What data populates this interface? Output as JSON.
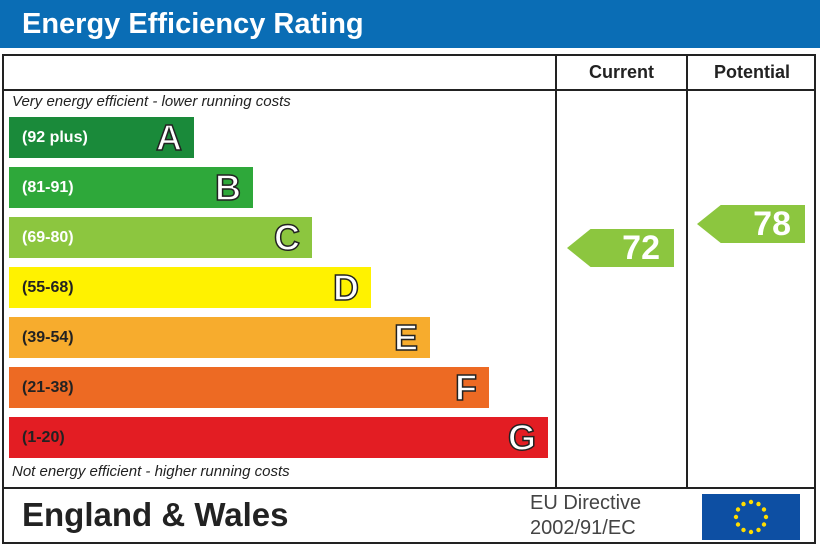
{
  "title": "Energy Efficiency Rating",
  "columns": {
    "current": "Current",
    "potential": "Potential"
  },
  "notes": {
    "top": "Very energy efficient - lower running costs",
    "bottom": "Not energy efficient - higher running costs"
  },
  "footer": {
    "region": "England & Wales",
    "directive_line1": "EU Directive",
    "directive_line2": "2002/91/EC",
    "flag": "eu-flag-icon"
  },
  "chart_data": {
    "type": "bar",
    "bands": [
      {
        "range": "(92 plus)",
        "letter": "A",
        "color": "#1a8a3a"
      },
      {
        "range": "(81-91)",
        "letter": "B",
        "color": "#2ea83a"
      },
      {
        "range": "(69-80)",
        "letter": "C",
        "color": "#8cc63f"
      },
      {
        "range": "(55-68)",
        "letter": "D",
        "color": "#fff200"
      },
      {
        "range": "(39-54)",
        "letter": "E",
        "color": "#f7ac2d"
      },
      {
        "range": "(21-38)",
        "letter": "F",
        "color": "#ed6a23"
      },
      {
        "range": "(1-20)",
        "letter": "G",
        "color": "#e31d23"
      }
    ],
    "current": {
      "value": 72,
      "band": "C",
      "color": "#8cc63f"
    },
    "potential": {
      "value": 78,
      "band": "C",
      "color": "#8cc63f"
    }
  }
}
